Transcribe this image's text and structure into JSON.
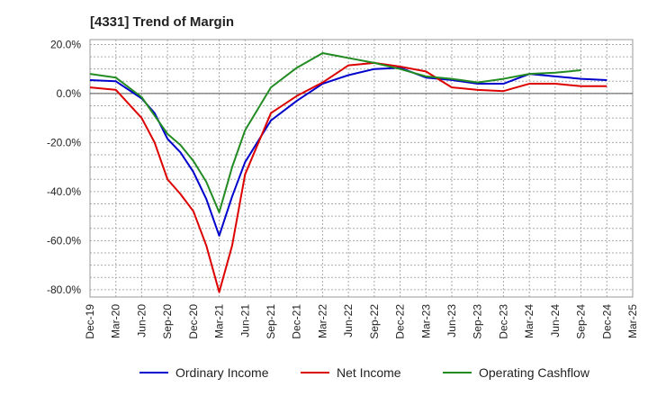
{
  "chart_data": {
    "type": "line",
    "title": "[4331]  Trend of Margin",
    "xlabel": "",
    "ylabel": "",
    "categories": [
      "Dec-19",
      "Mar-20",
      "Jun-20",
      "Sep-20",
      "Dec-20",
      "Mar-21",
      "Jun-21",
      "Sep-21",
      "Dec-21",
      "Mar-22",
      "Jun-22",
      "Sep-22",
      "Dec-22",
      "Mar-23",
      "Jun-23",
      "Sep-23",
      "Dec-23",
      "Mar-24",
      "Jun-24",
      "Sep-24",
      "Dec-24",
      "Mar-25"
    ],
    "y_ticks": [
      "20.0%",
      "0.0%",
      "-20.0%",
      "-40.0%",
      "-60.0%",
      "-80.0%"
    ],
    "y_tick_values": [
      20,
      0,
      -20,
      -40,
      -60,
      -80
    ],
    "ylim": [
      -83,
      22
    ],
    "grid": true,
    "legend_position": "bottom",
    "series": [
      {
        "name": "Ordinary Income",
        "color": "#0000cc",
        "points": [
          [
            0,
            5.5
          ],
          [
            1,
            5.0
          ],
          [
            2,
            -2.0
          ],
          [
            2.5,
            -8.0
          ],
          [
            3,
            -18.5
          ],
          [
            3.5,
            -24.0
          ],
          [
            4,
            -32.0
          ],
          [
            4.5,
            -43.0
          ],
          [
            5,
            -58.0
          ],
          [
            5.5,
            -42.0
          ],
          [
            6,
            -28.0
          ],
          [
            7,
            -11.0
          ],
          [
            8,
            -3.0
          ],
          [
            9,
            4.0
          ],
          [
            10,
            7.5
          ],
          [
            11,
            10.0
          ],
          [
            12,
            10.5
          ],
          [
            13,
            6.5
          ],
          [
            14,
            5.5
          ],
          [
            15,
            4.0
          ],
          [
            16,
            4.0
          ],
          [
            17,
            8.0
          ],
          [
            18,
            7.0
          ],
          [
            19,
            6.0
          ],
          [
            20,
            5.5
          ]
        ]
      },
      {
        "name": "Net Income",
        "color": "#dd0000",
        "points": [
          [
            0,
            2.5
          ],
          [
            1,
            1.5
          ],
          [
            2,
            -10.0
          ],
          [
            2.5,
            -20.0
          ],
          [
            3,
            -35.0
          ],
          [
            3.5,
            -41.0
          ],
          [
            4,
            -48.0
          ],
          [
            4.5,
            -62.0
          ],
          [
            5,
            -81.0
          ],
          [
            5.5,
            -62.0
          ],
          [
            6,
            -33.0
          ],
          [
            7,
            -8.0
          ],
          [
            8,
            -1.0
          ],
          [
            9,
            4.5
          ],
          [
            10,
            11.5
          ],
          [
            11,
            12.5
          ],
          [
            12,
            11.0
          ],
          [
            13,
            9.0
          ],
          [
            14,
            2.5
          ],
          [
            15,
            1.5
          ],
          [
            16,
            1.0
          ],
          [
            17,
            4.0
          ],
          [
            18,
            4.0
          ],
          [
            19,
            3.0
          ],
          [
            20,
            3.0
          ]
        ]
      },
      {
        "name": "Operating Cashflow",
        "color": "#228b22",
        "points": [
          [
            0,
            8.0
          ],
          [
            1,
            6.5
          ],
          [
            2,
            -1.5
          ],
          [
            3,
            -16.5
          ],
          [
            3.5,
            -21.0
          ],
          [
            4,
            -27.5
          ],
          [
            4.5,
            -36.0
          ],
          [
            5,
            -48.5
          ],
          [
            5.5,
            -30.0
          ],
          [
            6,
            -15.0
          ],
          [
            7,
            2.5
          ],
          [
            8,
            10.5
          ],
          [
            9,
            16.5
          ],
          [
            10,
            14.5
          ],
          [
            11,
            12.5
          ],
          [
            12,
            10.0
          ],
          [
            13,
            7.0
          ],
          [
            14,
            6.0
          ],
          [
            15,
            4.5
          ],
          [
            16,
            6.0
          ],
          [
            17,
            8.0
          ],
          [
            18,
            8.5
          ],
          [
            19,
            9.5
          ]
        ]
      }
    ]
  }
}
